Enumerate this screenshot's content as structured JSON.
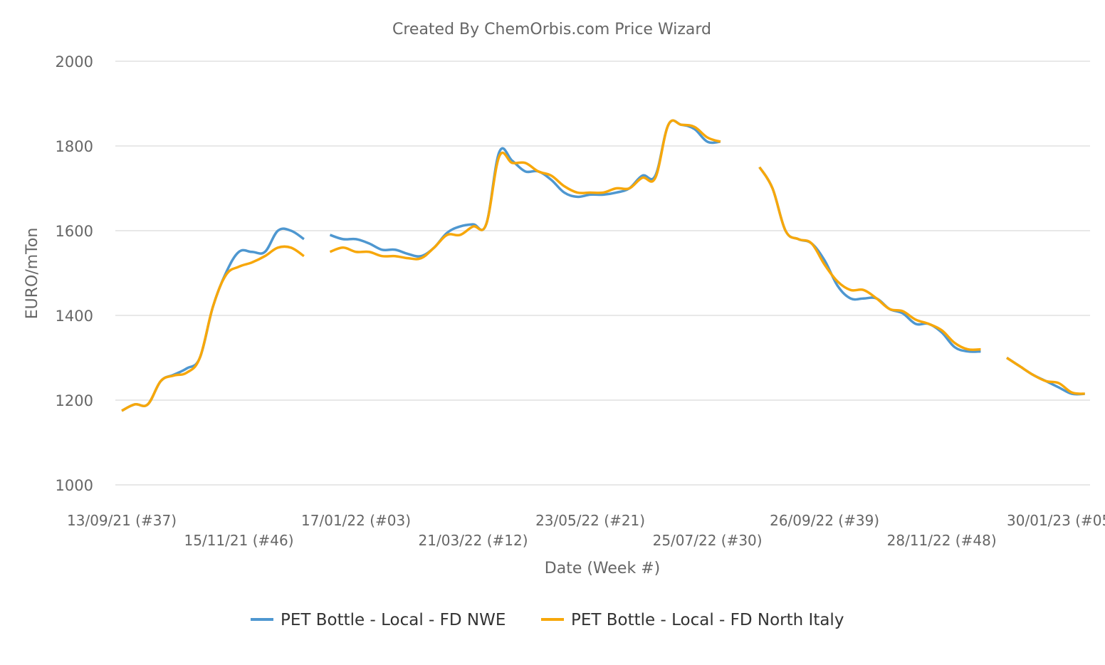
{
  "chart_data": {
    "type": "line",
    "title": "Created By ChemOrbis.com Price Wizard",
    "xlabel": "Date (Week #)",
    "ylabel": "EURO/mTon",
    "ylim": [
      1000,
      2000
    ],
    "yticks": [
      1000,
      1200,
      1400,
      1600,
      1800,
      2000
    ],
    "grid": true,
    "legend_position": "bottom",
    "x": [
      "13/09/21",
      "20/09/21",
      "27/09/21",
      "04/10/21",
      "11/10/21",
      "18/10/21",
      "25/10/21",
      "01/11/21",
      "08/11/21",
      "15/11/21",
      "22/11/21",
      "29/11/21",
      "06/12/21",
      "13/12/21",
      "20/12/21",
      "27/12/21",
      "03/01/22",
      "10/01/22",
      "17/01/22",
      "24/01/22",
      "31/01/22",
      "07/02/22",
      "14/02/22",
      "21/02/22",
      "28/02/22",
      "07/03/22",
      "14/03/22",
      "21/03/22",
      "28/03/22",
      "04/04/22",
      "11/04/22",
      "18/04/22",
      "25/04/22",
      "02/05/22",
      "09/05/22",
      "16/05/22",
      "23/05/22",
      "30/05/22",
      "06/06/22",
      "13/06/22",
      "20/06/22",
      "27/06/22",
      "04/07/22",
      "11/07/22",
      "18/07/22",
      "25/07/22",
      "01/08/22",
      "08/08/22",
      "15/08/22",
      "22/08/22",
      "29/08/22",
      "05/09/22",
      "12/09/22",
      "19/09/22",
      "26/09/22",
      "03/10/22",
      "10/10/22",
      "17/10/22",
      "24/10/22",
      "31/10/22",
      "07/11/22",
      "14/11/22",
      "21/11/22",
      "28/11/22",
      "05/12/22",
      "12/12/22",
      "19/12/22",
      "26/12/22",
      "02/01/23",
      "09/01/23",
      "16/01/23",
      "23/01/23",
      "30/01/23",
      "06/02/23",
      "13/02/23"
    ],
    "xtick_labels": [
      {
        "date": "13/09/21",
        "label": "13/09/21 (#37)"
      },
      {
        "date": "15/11/21",
        "label": "15/11/21 (#46)"
      },
      {
        "date": "17/01/22",
        "label": "17/01/22 (#03)"
      },
      {
        "date": "21/03/22",
        "label": "21/03/22 (#12)"
      },
      {
        "date": "23/05/22",
        "label": "23/05/22 (#21)"
      },
      {
        "date": "25/07/22",
        "label": "25/07/22 (#30)"
      },
      {
        "date": "26/09/22",
        "label": "26/09/22 (#39)"
      },
      {
        "date": "28/11/22",
        "label": "28/11/22 (#48)"
      },
      {
        "date": "30/01/23",
        "label": "30/01/23 (#05"
      }
    ],
    "series": [
      {
        "name": "PET Bottle - Local - FD NWE",
        "color": "#4e97d0",
        "values": [
          1175,
          1190,
          1190,
          1245,
          1260,
          1275,
          1300,
          1420,
          1500,
          1550,
          1550,
          1550,
          1600,
          1600,
          1580,
          null,
          1590,
          1580,
          1580,
          1570,
          1555,
          1555,
          1545,
          1540,
          1560,
          1595,
          1610,
          1615,
          1615,
          1785,
          1765,
          1740,
          1740,
          1720,
          1690,
          1680,
          1685,
          1685,
          1690,
          1700,
          1730,
          1730,
          1850,
          1850,
          1840,
          1810,
          1810,
          null,
          null,
          1750,
          1700,
          1600,
          1580,
          1570,
          1530,
          1470,
          1440,
          1440,
          1440,
          1415,
          1405,
          1380,
          1380,
          1360,
          1325,
          1315,
          1315,
          null,
          1300,
          1280,
          1260,
          1245,
          1230,
          1215,
          1215
        ]
      },
      {
        "name": "PET Bottle - Local - FD North Italy",
        "color": "#f7a70a",
        "values": [
          1175,
          1190,
          1190,
          1245,
          1258,
          1265,
          1300,
          1420,
          1495,
          1515,
          1525,
          1540,
          1560,
          1560,
          1540,
          null,
          1550,
          1560,
          1550,
          1550,
          1540,
          1540,
          1535,
          1535,
          1560,
          1590,
          1590,
          1610,
          1615,
          1775,
          1760,
          1760,
          1740,
          1730,
          1705,
          1690,
          1690,
          1690,
          1700,
          1700,
          1725,
          1725,
          1850,
          1850,
          1845,
          1820,
          1810,
          null,
          null,
          1750,
          1700,
          1600,
          1580,
          1570,
          1520,
          1480,
          1460,
          1460,
          1440,
          1415,
          1410,
          1390,
          1380,
          1365,
          1335,
          1320,
          1320,
          null,
          1300,
          1280,
          1260,
          1245,
          1240,
          1218,
          1215
        ]
      }
    ]
  }
}
